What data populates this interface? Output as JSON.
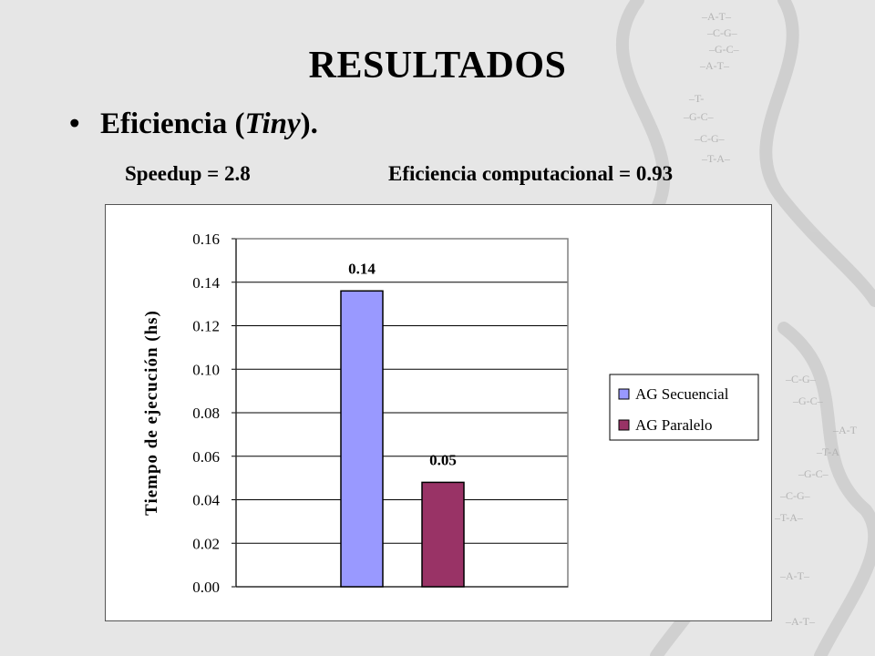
{
  "slide": {
    "title": "RESULTADOS",
    "bullet": {
      "marker": "•",
      "prefix": "Eficiencia (",
      "emph": "Tiny",
      "suffix": ")."
    },
    "stats": {
      "speedup": "Speedup = 2.8",
      "efficiency": "Eficiencia computacional = 0.93"
    }
  },
  "colors": {
    "secuencial": "#9999ff",
    "paralelo": "#993366",
    "gridline": "#000000",
    "background": "#e6e6e6"
  },
  "chart_data": {
    "type": "bar",
    "title": "",
    "xlabel": "",
    "ylabel": "Tiempo de ejecución (hs)",
    "ylim": [
      0,
      0.16
    ],
    "yticks": [
      0.0,
      0.02,
      0.04,
      0.06,
      0.08,
      0.1,
      0.12,
      0.14,
      0.16
    ],
    "ytick_labels": [
      "0.00",
      "0.02",
      "0.04",
      "0.06",
      "0.08",
      "0.10",
      "0.12",
      "0.14",
      "0.16"
    ],
    "grid": true,
    "legend_position": "right",
    "series": [
      {
        "name": "AG Secuencial",
        "value": 0.136,
        "label": "0.14"
      },
      {
        "name": "AG Paralelo",
        "value": 0.048,
        "label": "0.05"
      }
    ]
  }
}
